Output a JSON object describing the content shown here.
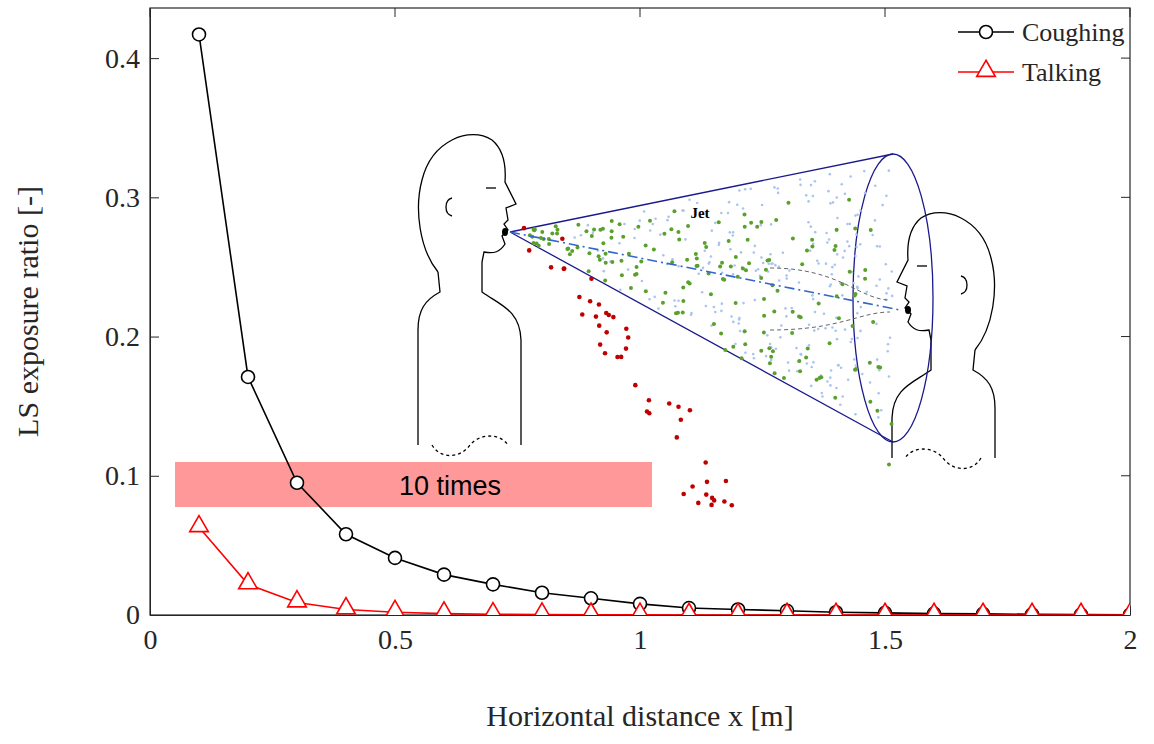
{
  "chart_data": {
    "type": "line",
    "x_label": "Horizontal distance x [m]",
    "y_label": "LS exposure ratio [-]",
    "x": [
      0.1,
      0.2,
      0.3,
      0.4,
      0.5,
      0.6,
      0.7,
      0.8,
      0.9,
      1.0,
      1.1,
      1.2,
      1.3,
      1.4,
      1.5,
      1.6,
      1.7,
      1.8,
      1.9,
      2.0
    ],
    "series": [
      {
        "name": "Coughing",
        "color": "#000000",
        "marker": "circle",
        "line_style": "solid",
        "values": [
          0.417,
          0.171,
          0.095,
          0.058,
          0.041,
          0.029,
          0.022,
          0.016,
          0.012,
          0.008,
          0.005,
          0.004,
          0.003,
          0.002,
          0.0015,
          0.001,
          0.0008,
          0.0005,
          0.0003,
          0.0002
        ]
      },
      {
        "name": "Talking",
        "color": "#ff0000",
        "marker": "triangle",
        "line_style": "solid",
        "values": [
          0.063,
          0.022,
          0.009,
          0.004,
          0.002,
          0.001,
          0.0005,
          0.0003,
          0.0002,
          0.0001,
          0,
          0,
          0,
          0,
          0,
          0,
          0,
          0,
          0,
          0
        ]
      }
    ],
    "xlim": [
      0,
      2
    ],
    "xticks": [
      0,
      0.5,
      1,
      1.5,
      2
    ],
    "ylim": [
      0,
      0.436
    ],
    "yticks": [
      0,
      0.1,
      0.2,
      0.3,
      0.4
    ],
    "legend": "upper right",
    "grid": false,
    "annotations": [
      {
        "text": "10 times"
      },
      {
        "text": "Jet"
      }
    ]
  }
}
